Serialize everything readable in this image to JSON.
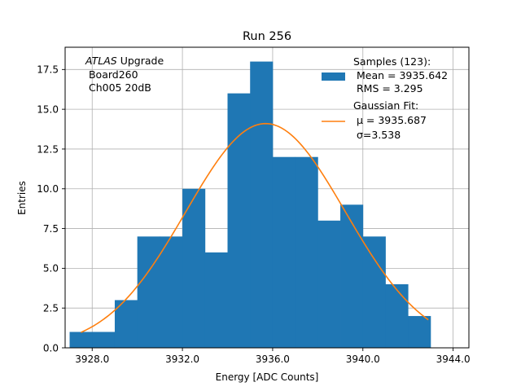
{
  "chart_data": {
    "type": "bar",
    "title": "Run 256",
    "xlabel": "Energy [ADC Counts]",
    "ylabel": "Entries",
    "xlim": [
      3926.8,
      3944.7
    ],
    "ylim": [
      0,
      18.9
    ],
    "grid": true,
    "xticks": [
      3928.0,
      3932.0,
      3936.0,
      3940.0,
      3944.0
    ],
    "xtick_labels": [
      "3928.0",
      "3932.0",
      "3936.0",
      "3940.0",
      "3944.0"
    ],
    "yticks": [
      0.0,
      2.5,
      5.0,
      7.5,
      10.0,
      12.5,
      15.0,
      17.5
    ],
    "ytick_labels": [
      "0.0",
      "2.5",
      "5.0",
      "7.5",
      "10.0",
      "12.5",
      "15.0",
      "17.5"
    ],
    "histogram": {
      "bin_edges": [
        3927.0,
        3928.0,
        3929.0,
        3930.0,
        3931.0,
        3932.0,
        3933.0,
        3934.0,
        3935.0,
        3936.0,
        3937.0,
        3938.0,
        3939.0,
        3940.0,
        3941.0,
        3942.0,
        3943.0
      ],
      "counts": [
        1,
        1,
        3,
        7,
        7,
        10,
        6,
        16,
        18,
        12,
        12,
        8,
        9,
        7,
        4,
        2
      ],
      "color": "#1f77b4"
    },
    "fit": {
      "type": "gaussian",
      "mu": 3935.687,
      "sigma": 3.538,
      "x_range": [
        3927.5,
        3942.9
      ],
      "peak": 14.1,
      "color": "#ff7f0e"
    },
    "annotation": {
      "italic": "ATLAS",
      "line1_rest": " Upgrade",
      "line2": " Board260",
      "line3": " Ch005 20dB"
    },
    "legend": {
      "position": "top-right",
      "samples_header": "Samples (123):",
      "samples_mean": " Mean = 3935.642",
      "samples_rms": " RMS = 3.295",
      "fit_header": "Gaussian Fit:",
      "fit_mu": " μ = 3935.687",
      "fit_sigma": " σ=3.538"
    }
  }
}
